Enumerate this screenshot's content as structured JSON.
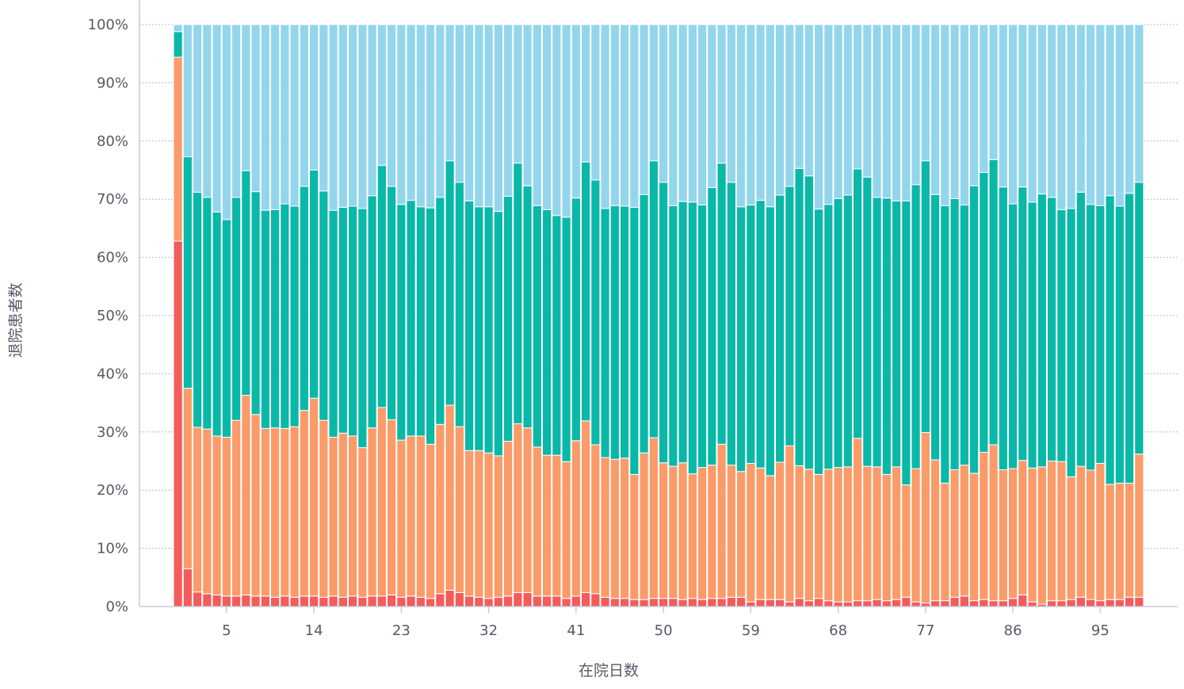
{
  "chart_data": {
    "type": "bar",
    "stacked": true,
    "normalized": true,
    "xlabel": "在院日数",
    "ylabel": "退院患者数",
    "ylim": [
      0,
      100
    ],
    "y_ticks": [
      0,
      10,
      20,
      30,
      40,
      50,
      60,
      70,
      80,
      90,
      100
    ],
    "y_tick_labels": [
      "0%",
      "10%",
      "20%",
      "30%",
      "40%",
      "50%",
      "60%",
      "70%",
      "80%",
      "90%",
      "100%"
    ],
    "x_tick_labels": [
      "5",
      "14",
      "23",
      "32",
      "41",
      "50",
      "59",
      "68",
      "77",
      "86",
      "95"
    ],
    "x_tick_values": [
      5,
      14,
      23,
      32,
      41,
      50,
      59,
      68,
      77,
      86,
      95
    ],
    "grid": true,
    "legend": "none",
    "categories": [
      0,
      1,
      2,
      3,
      4,
      5,
      6,
      7,
      8,
      9,
      10,
      11,
      12,
      13,
      14,
      15,
      16,
      17,
      18,
      19,
      20,
      21,
      22,
      23,
      24,
      25,
      26,
      27,
      28,
      29,
      30,
      31,
      32,
      33,
      34,
      35,
      36,
      37,
      38,
      39,
      40,
      41,
      42,
      43,
      44,
      45,
      46,
      47,
      48,
      49,
      50,
      51,
      52,
      53,
      54,
      55,
      56,
      57,
      58,
      59,
      60,
      61,
      62,
      63,
      64,
      65,
      66,
      67,
      68,
      69,
      70,
      71,
      72,
      73,
      74,
      75,
      76,
      77,
      78,
      79,
      80,
      81,
      82,
      83,
      84,
      85,
      86,
      87,
      88,
      89,
      90,
      91,
      92,
      93,
      94,
      95,
      96,
      97,
      98,
      99
    ],
    "series": [
      {
        "color": "#f45b5b",
        "values": [
          62.8,
          6.5,
          2.5,
          2.2,
          2.0,
          1.8,
          1.8,
          2.0,
          1.8,
          1.8,
          1.6,
          1.8,
          1.6,
          1.8,
          1.8,
          1.6,
          1.8,
          1.6,
          1.8,
          1.6,
          1.8,
          1.8,
          2.0,
          1.6,
          1.8,
          1.6,
          1.4,
          2.2,
          2.8,
          2.4,
          1.8,
          1.6,
          1.4,
          1.6,
          1.8,
          2.4,
          2.4,
          1.8,
          1.8,
          1.8,
          1.4,
          1.8,
          2.4,
          2.2,
          1.6,
          1.4,
          1.4,
          1.2,
          1.2,
          1.4,
          1.4,
          1.4,
          1.2,
          1.4,
          1.2,
          1.4,
          1.4,
          1.6,
          1.6,
          0.8,
          1.2,
          1.2,
          1.2,
          0.8,
          1.4,
          1.0,
          1.4,
          1.0,
          0.8,
          0.8,
          1.0,
          1.0,
          1.2,
          1.0,
          1.2,
          1.6,
          0.8,
          0.6,
          1.0,
          1.0,
          1.6,
          1.8,
          1.0,
          1.2,
          1.0,
          1.0,
          1.4,
          2.0,
          0.8,
          0.4,
          1.0,
          1.0,
          1.2,
          1.6,
          1.2,
          1.0,
          1.2,
          1.2,
          1.6,
          1.6
        ]
      },
      {
        "color": "#fa9b69",
        "values": [
          31.6,
          31.0,
          28.3,
          28.3,
          27.3,
          27.3,
          30.2,
          34.3,
          31.2,
          28.8,
          29.1,
          28.8,
          29.3,
          31.9,
          34.0,
          30.4,
          27.3,
          28.2,
          27.5,
          25.7,
          28.9,
          32.4,
          30.1,
          27.0,
          27.5,
          27.7,
          26.5,
          29.1,
          31.8,
          28.5,
          25.0,
          25.2,
          25.0,
          24.3,
          26.6,
          29.0,
          28.3,
          25.6,
          24.2,
          24.2,
          23.5,
          26.7,
          29.5,
          25.6,
          24.0,
          23.9,
          24.1,
          21.5,
          25.2,
          27.6,
          23.3,
          22.7,
          23.5,
          21.4,
          22.7,
          22.9,
          26.5,
          22.7,
          21.6,
          23.8,
          22.6,
          21.3,
          23.6,
          26.8,
          22.8,
          22.6,
          21.3,
          22.6,
          23.1,
          23.2,
          27.9,
          23.1,
          22.8,
          21.7,
          22.8,
          19.3,
          22.9,
          29.3,
          24.2,
          20.0,
          21.9,
          22.5,
          21.9,
          25.3,
          26.8,
          22.5,
          22.3,
          23.1,
          23.0,
          23.6,
          24.0,
          23.9,
          21.1,
          22.5,
          22.0,
          23.6,
          19.8,
          20.0,
          19.6,
          24.6
        ]
      },
      {
        "color": "#0ab8a7",
        "values": [
          4.4,
          39.8,
          40.4,
          39.8,
          38.5,
          37.4,
          38.3,
          38.6,
          38.3,
          37.5,
          37.5,
          38.6,
          37.9,
          38.5,
          39.2,
          39.4,
          39.0,
          38.8,
          39.5,
          41.1,
          39.9,
          41.6,
          40.1,
          40.5,
          40.5,
          39.4,
          40.6,
          39.0,
          42.0,
          42.0,
          42.9,
          41.9,
          42.3,
          42.0,
          42.1,
          44.8,
          41.6,
          41.5,
          42.2,
          41.2,
          42.0,
          41.7,
          44.5,
          45.5,
          42.8,
          43.6,
          43.3,
          45.9,
          44.4,
          47.6,
          48.2,
          44.8,
          44.9,
          46.7,
          45.1,
          47.7,
          48.3,
          48.6,
          45.5,
          44.4,
          46.0,
          46.2,
          45.9,
          44.6,
          51.1,
          50.4,
          45.6,
          45.5,
          46.2,
          46.7,
          46.3,
          49.7,
          46.3,
          47.5,
          45.7,
          48.8,
          48.8,
          46.7,
          45.6,
          47.2,
          46.6,
          44.7,
          49.4,
          48.1,
          49.0,
          48.6,
          45.5,
          47.0,
          45.7,
          46.9,
          45.3,
          43.3,
          46.1,
          47.1,
          45.2,
          44.3,
          49.6,
          47.6,
          49.8,
          46.7
        ]
      },
      {
        "color": "#93d6ec",
        "values": [
          1.2,
          22.7,
          28.8,
          29.7,
          32.2,
          33.5,
          29.7,
          25.1,
          28.7,
          31.9,
          31.8,
          30.8,
          31.2,
          27.8,
          25.0,
          28.6,
          31.9,
          31.4,
          31.2,
          31.6,
          29.4,
          24.2,
          27.8,
          30.9,
          30.2,
          31.3,
          31.5,
          29.7,
          23.4,
          27.1,
          30.3,
          31.3,
          31.3,
          32.1,
          29.5,
          23.8,
          27.7,
          31.1,
          31.8,
          32.8,
          33.1,
          29.8,
          23.6,
          26.7,
          31.6,
          31.1,
          31.2,
          31.4,
          29.2,
          23.4,
          27.1,
          31.1,
          30.4,
          30.5,
          31.0,
          28.0,
          23.8,
          27.1,
          31.3,
          31.0,
          30.2,
          31.3,
          29.3,
          27.8,
          24.7,
          26.0,
          31.7,
          30.9,
          29.9,
          29.3,
          24.8,
          26.2,
          29.7,
          29.8,
          30.3,
          30.3,
          27.5,
          23.4,
          29.2,
          30.8,
          29.9,
          31.0,
          27.7,
          25.4,
          23.2,
          27.9,
          30.8,
          27.9,
          30.5,
          29.1,
          29.7,
          31.8,
          31.6,
          28.8,
          30.6,
          31.1,
          29.4,
          31.2,
          29.0,
          27.1
        ]
      }
    ]
  }
}
